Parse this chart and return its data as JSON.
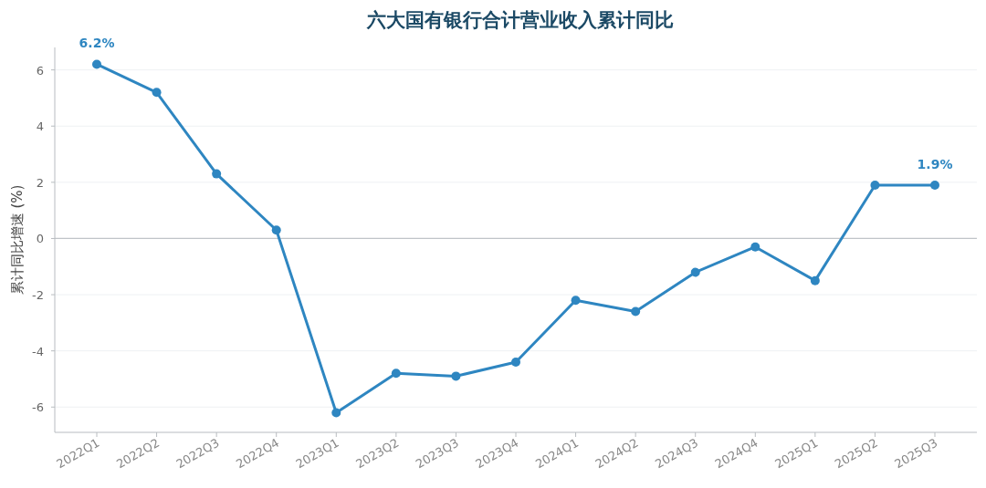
{
  "chart_data": {
    "type": "line",
    "title": "六大国有银行合计营业收入累计同比",
    "ylabel": "累计同比增速 (%)",
    "categories": [
      "2022Q1",
      "2022Q2",
      "2022Q3",
      "2022Q4",
      "2023Q1",
      "2023Q2",
      "2023Q3",
      "2023Q4",
      "2024Q1",
      "2024Q2",
      "2024Q3",
      "2024Q4",
      "2025Q1",
      "2025Q2",
      "2025Q3"
    ],
    "series": [
      {
        "color": "#2e86c1",
        "values": [
          6.2,
          5.2,
          2.3,
          0.3,
          -6.2,
          -4.8,
          -4.9,
          -4.4,
          -2.2,
          -2.6,
          -1.2,
          -0.3,
          -1.5,
          1.9,
          1.9
        ],
        "value_labels": [
          "6.2%",
          null,
          null,
          null,
          null,
          null,
          null,
          null,
          null,
          null,
          null,
          null,
          null,
          null,
          "1.9%"
        ]
      }
    ],
    "ylim": [
      -6.9,
      6.8
    ],
    "yticks": [
      -6,
      -4,
      -2,
      0,
      2,
      4,
      6
    ],
    "grid": "y",
    "marker": "circle",
    "line_style": "solid",
    "ref_lines": [
      {
        "axis": "y",
        "value": 0,
        "color": "#c0c4c8"
      }
    ]
  }
}
